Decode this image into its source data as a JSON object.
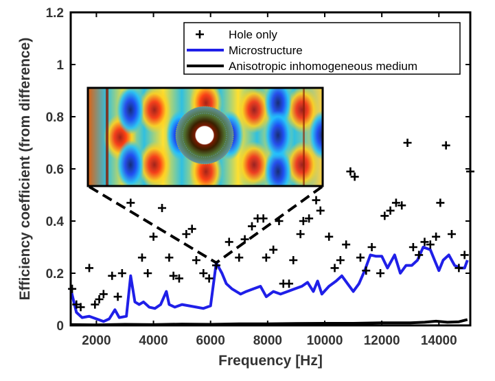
{
  "chart_data": {
    "type": "scatter",
    "xlabel": "Frequency [Hz]",
    "ylabel": "Efficiency coefficient (from difference)",
    "xlim": [
      1100,
      15100
    ],
    "ylim": [
      0,
      1.2
    ],
    "x_ticks": [
      "2000",
      "4000",
      "6000",
      "8000",
      "10000",
      "12000",
      "14000"
    ],
    "x_tick_values": [
      2000,
      4000,
      6000,
      8000,
      10000,
      12000,
      14000
    ],
    "y_ticks": [
      "0",
      "0.2",
      "0.4",
      "0.6",
      "0.8",
      "1",
      "1.2"
    ],
    "y_tick_values": [
      0,
      0.2,
      0.4,
      0.6,
      0.8,
      1.0,
      1.2
    ],
    "legend_position": "top-right",
    "series": [
      {
        "name": "Hole only",
        "kind": "markers",
        "marker": "+",
        "color": "#000000",
        "points": [
          [
            1150,
            0.14
          ],
          [
            1300,
            0.08
          ],
          [
            1450,
            0.07
          ],
          [
            1750,
            0.22
          ],
          [
            1950,
            0.08
          ],
          [
            2100,
            0.1
          ],
          [
            2250,
            0.12
          ],
          [
            2550,
            0.19
          ],
          [
            2750,
            0.11
          ],
          [
            2900,
            0.2
          ],
          [
            3200,
            0.47
          ],
          [
            3600,
            0.26
          ],
          [
            3800,
            0.2
          ],
          [
            4000,
            0.34
          ],
          [
            4300,
            0.45
          ],
          [
            4550,
            0.26
          ],
          [
            4700,
            0.19
          ],
          [
            4900,
            0.18
          ],
          [
            5150,
            0.35
          ],
          [
            5350,
            0.37
          ],
          [
            5500,
            0.25
          ],
          [
            5750,
            0.2
          ],
          [
            5950,
            0.18
          ],
          [
            6200,
            0.23
          ],
          [
            6650,
            0.32
          ],
          [
            7000,
            0.26
          ],
          [
            7200,
            0.33
          ],
          [
            7450,
            0.38
          ],
          [
            7650,
            0.41
          ],
          [
            7850,
            0.41
          ],
          [
            7950,
            0.26
          ],
          [
            8200,
            0.29
          ],
          [
            8400,
            0.4
          ],
          [
            8550,
            0.16
          ],
          [
            8750,
            0.16
          ],
          [
            8900,
            0.25
          ],
          [
            9150,
            0.35
          ],
          [
            9250,
            0.4
          ],
          [
            9450,
            0.41
          ],
          [
            9700,
            0.48
          ],
          [
            9850,
            0.44
          ],
          [
            10150,
            0.34
          ],
          [
            10350,
            0.22
          ],
          [
            10550,
            0.25
          ],
          [
            10750,
            0.31
          ],
          [
            10900,
            0.59
          ],
          [
            11050,
            0.57
          ],
          [
            11250,
            0.26
          ],
          [
            11450,
            0.21
          ],
          [
            11650,
            0.3
          ],
          [
            11950,
            0.2
          ],
          [
            12100,
            0.42
          ],
          [
            12300,
            0.44
          ],
          [
            12500,
            0.47
          ],
          [
            12700,
            0.46
          ],
          [
            12900,
            0.7
          ],
          [
            13100,
            0.3
          ],
          [
            13300,
            0.27
          ],
          [
            13500,
            0.32
          ],
          [
            13700,
            0.31
          ],
          [
            13900,
            0.34
          ],
          [
            14050,
            0.47
          ],
          [
            14250,
            0.69
          ],
          [
            14450,
            0.35
          ],
          [
            14700,
            0.22
          ],
          [
            14900,
            0.27
          ],
          [
            15100,
            0.59
          ]
        ]
      },
      {
        "name": "Microstructure",
        "kind": "line",
        "color": "#1f1fe8",
        "points": [
          [
            1100,
            0.14
          ],
          [
            1300,
            0.05
          ],
          [
            1500,
            0.03
          ],
          [
            1750,
            0.035
          ],
          [
            2000,
            0.025
          ],
          [
            2250,
            0.015
          ],
          [
            2450,
            0.025
          ],
          [
            2650,
            0.06
          ],
          [
            2800,
            0.03
          ],
          [
            3050,
            0.035
          ],
          [
            3200,
            0.19
          ],
          [
            3350,
            0.09
          ],
          [
            3500,
            0.08
          ],
          [
            3650,
            0.09
          ],
          [
            3850,
            0.07
          ],
          [
            4050,
            0.065
          ],
          [
            4250,
            0.08
          ],
          [
            4450,
            0.13
          ],
          [
            4550,
            0.08
          ],
          [
            4750,
            0.07
          ],
          [
            5000,
            0.08
          ],
          [
            5250,
            0.075
          ],
          [
            5500,
            0.07
          ],
          [
            5750,
            0.065
          ],
          [
            6000,
            0.075
          ],
          [
            6200,
            0.24
          ],
          [
            6400,
            0.2
          ],
          [
            6550,
            0.16
          ],
          [
            6750,
            0.14
          ],
          [
            6900,
            0.13
          ],
          [
            7050,
            0.12
          ],
          [
            7250,
            0.13
          ],
          [
            7500,
            0.14
          ],
          [
            7750,
            0.15
          ],
          [
            7950,
            0.11
          ],
          [
            8200,
            0.13
          ],
          [
            8450,
            0.12
          ],
          [
            8700,
            0.13
          ],
          [
            8950,
            0.14
          ],
          [
            9200,
            0.15
          ],
          [
            9400,
            0.165
          ],
          [
            9600,
            0.13
          ],
          [
            9750,
            0.17
          ],
          [
            9900,
            0.12
          ],
          [
            10150,
            0.15
          ],
          [
            10400,
            0.17
          ],
          [
            10600,
            0.19
          ],
          [
            10800,
            0.16
          ],
          [
            11000,
            0.13
          ],
          [
            11200,
            0.16
          ],
          [
            11400,
            0.21
          ],
          [
            11600,
            0.27
          ],
          [
            11800,
            0.265
          ],
          [
            12000,
            0.265
          ],
          [
            12200,
            0.22
          ],
          [
            12450,
            0.27
          ],
          [
            12650,
            0.2
          ],
          [
            12850,
            0.23
          ],
          [
            13050,
            0.23
          ],
          [
            13250,
            0.25
          ],
          [
            13450,
            0.3
          ],
          [
            13700,
            0.29
          ],
          [
            13850,
            0.25
          ],
          [
            14000,
            0.21
          ],
          [
            14150,
            0.25
          ],
          [
            14350,
            0.27
          ],
          [
            14550,
            0.23
          ],
          [
            14750,
            0.22
          ],
          [
            14900,
            0.22
          ],
          [
            15000,
            0.25
          ]
        ]
      },
      {
        "name": "Anisotropic inhomogeneous medium",
        "kind": "line",
        "color": "#000000",
        "points": [
          [
            1100,
            0.003
          ],
          [
            2000,
            0.002
          ],
          [
            3000,
            0.004
          ],
          [
            4000,
            0.003
          ],
          [
            5000,
            0.005
          ],
          [
            6000,
            0.004
          ],
          [
            7000,
            0.006
          ],
          [
            8000,
            0.006
          ],
          [
            9000,
            0.007
          ],
          [
            10000,
            0.008
          ],
          [
            11000,
            0.008
          ],
          [
            12000,
            0.01
          ],
          [
            13000,
            0.01
          ],
          [
            13500,
            0.012
          ],
          [
            13900,
            0.016
          ],
          [
            14300,
            0.012
          ],
          [
            14700,
            0.014
          ],
          [
            15000,
            0.022
          ]
        ]
      }
    ],
    "inset": {
      "description_name": "field-map-inset",
      "anchor_point": [
        6200,
        0.24
      ]
    }
  }
}
